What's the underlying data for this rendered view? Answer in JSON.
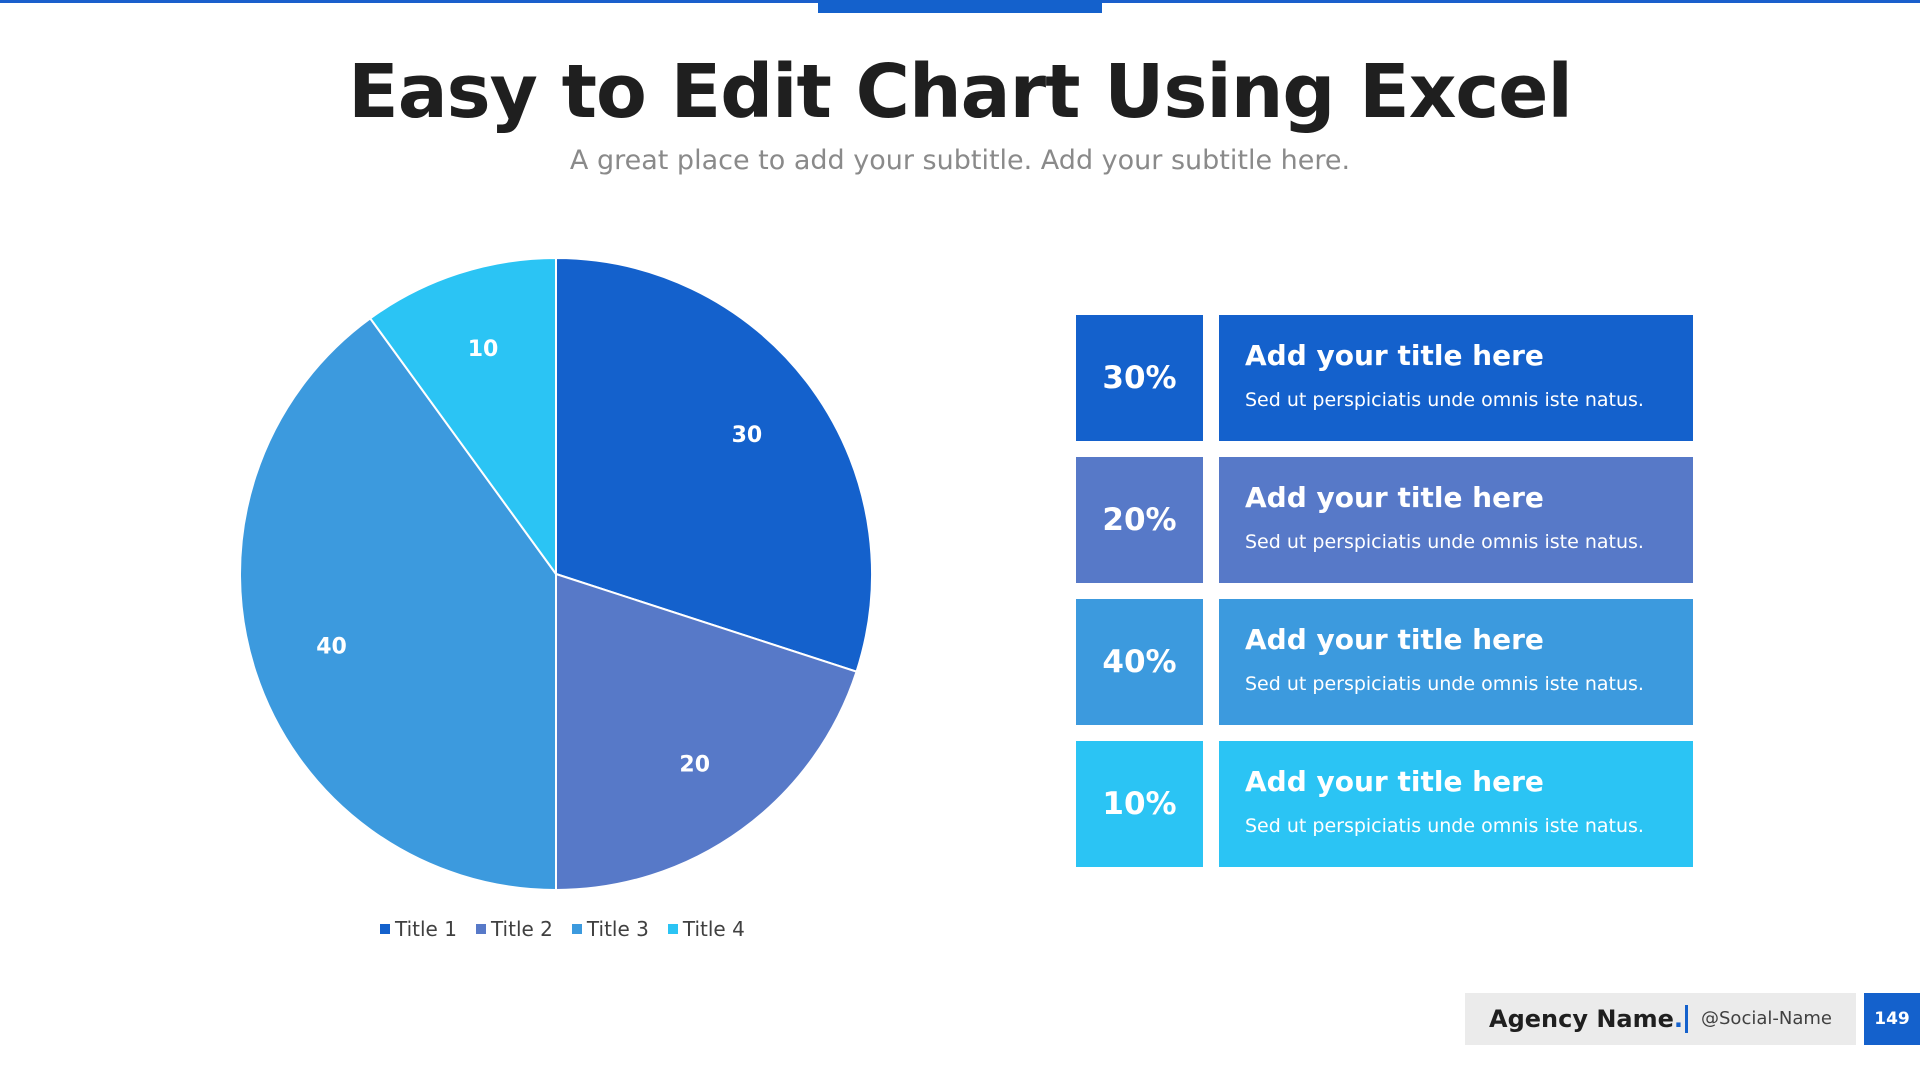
{
  "header": {
    "title": "Easy to Edit Chart Using Excel",
    "subtitle": "A great place to add your subtitle. Add your subtitle here."
  },
  "colors": {
    "accent": "#1461cc",
    "series": [
      "#1461cc",
      "#5779c8",
      "#3c9ade",
      "#2bc4f4"
    ]
  },
  "chart_data": {
    "type": "pie",
    "categories": [
      "Title 1",
      "Title 2",
      "Title 3",
      "Title 4"
    ],
    "values": [
      30,
      20,
      40,
      10
    ],
    "data_labels": [
      "30",
      "20",
      "40",
      "10"
    ],
    "legend_position": "bottom",
    "start_angle": "12 o'clock",
    "direction": "clockwise"
  },
  "rows": [
    {
      "percent": "30%",
      "title": "Add your title here",
      "desc": "Sed ut perspiciatis unde omnis iste natus."
    },
    {
      "percent": "20%",
      "title": "Add your title here",
      "desc": "Sed ut perspiciatis unde omnis iste natus."
    },
    {
      "percent": "40%",
      "title": "Add your title here",
      "desc": "Sed ut perspiciatis unde omnis iste natus."
    },
    {
      "percent": "10%",
      "title": "Add your title here",
      "desc": "Sed ut perspiciatis unde omnis iste natus."
    }
  ],
  "footer": {
    "agency": "Agency Name",
    "agency_dot": ".",
    "social": "@Social-Name",
    "page_number": "149"
  }
}
